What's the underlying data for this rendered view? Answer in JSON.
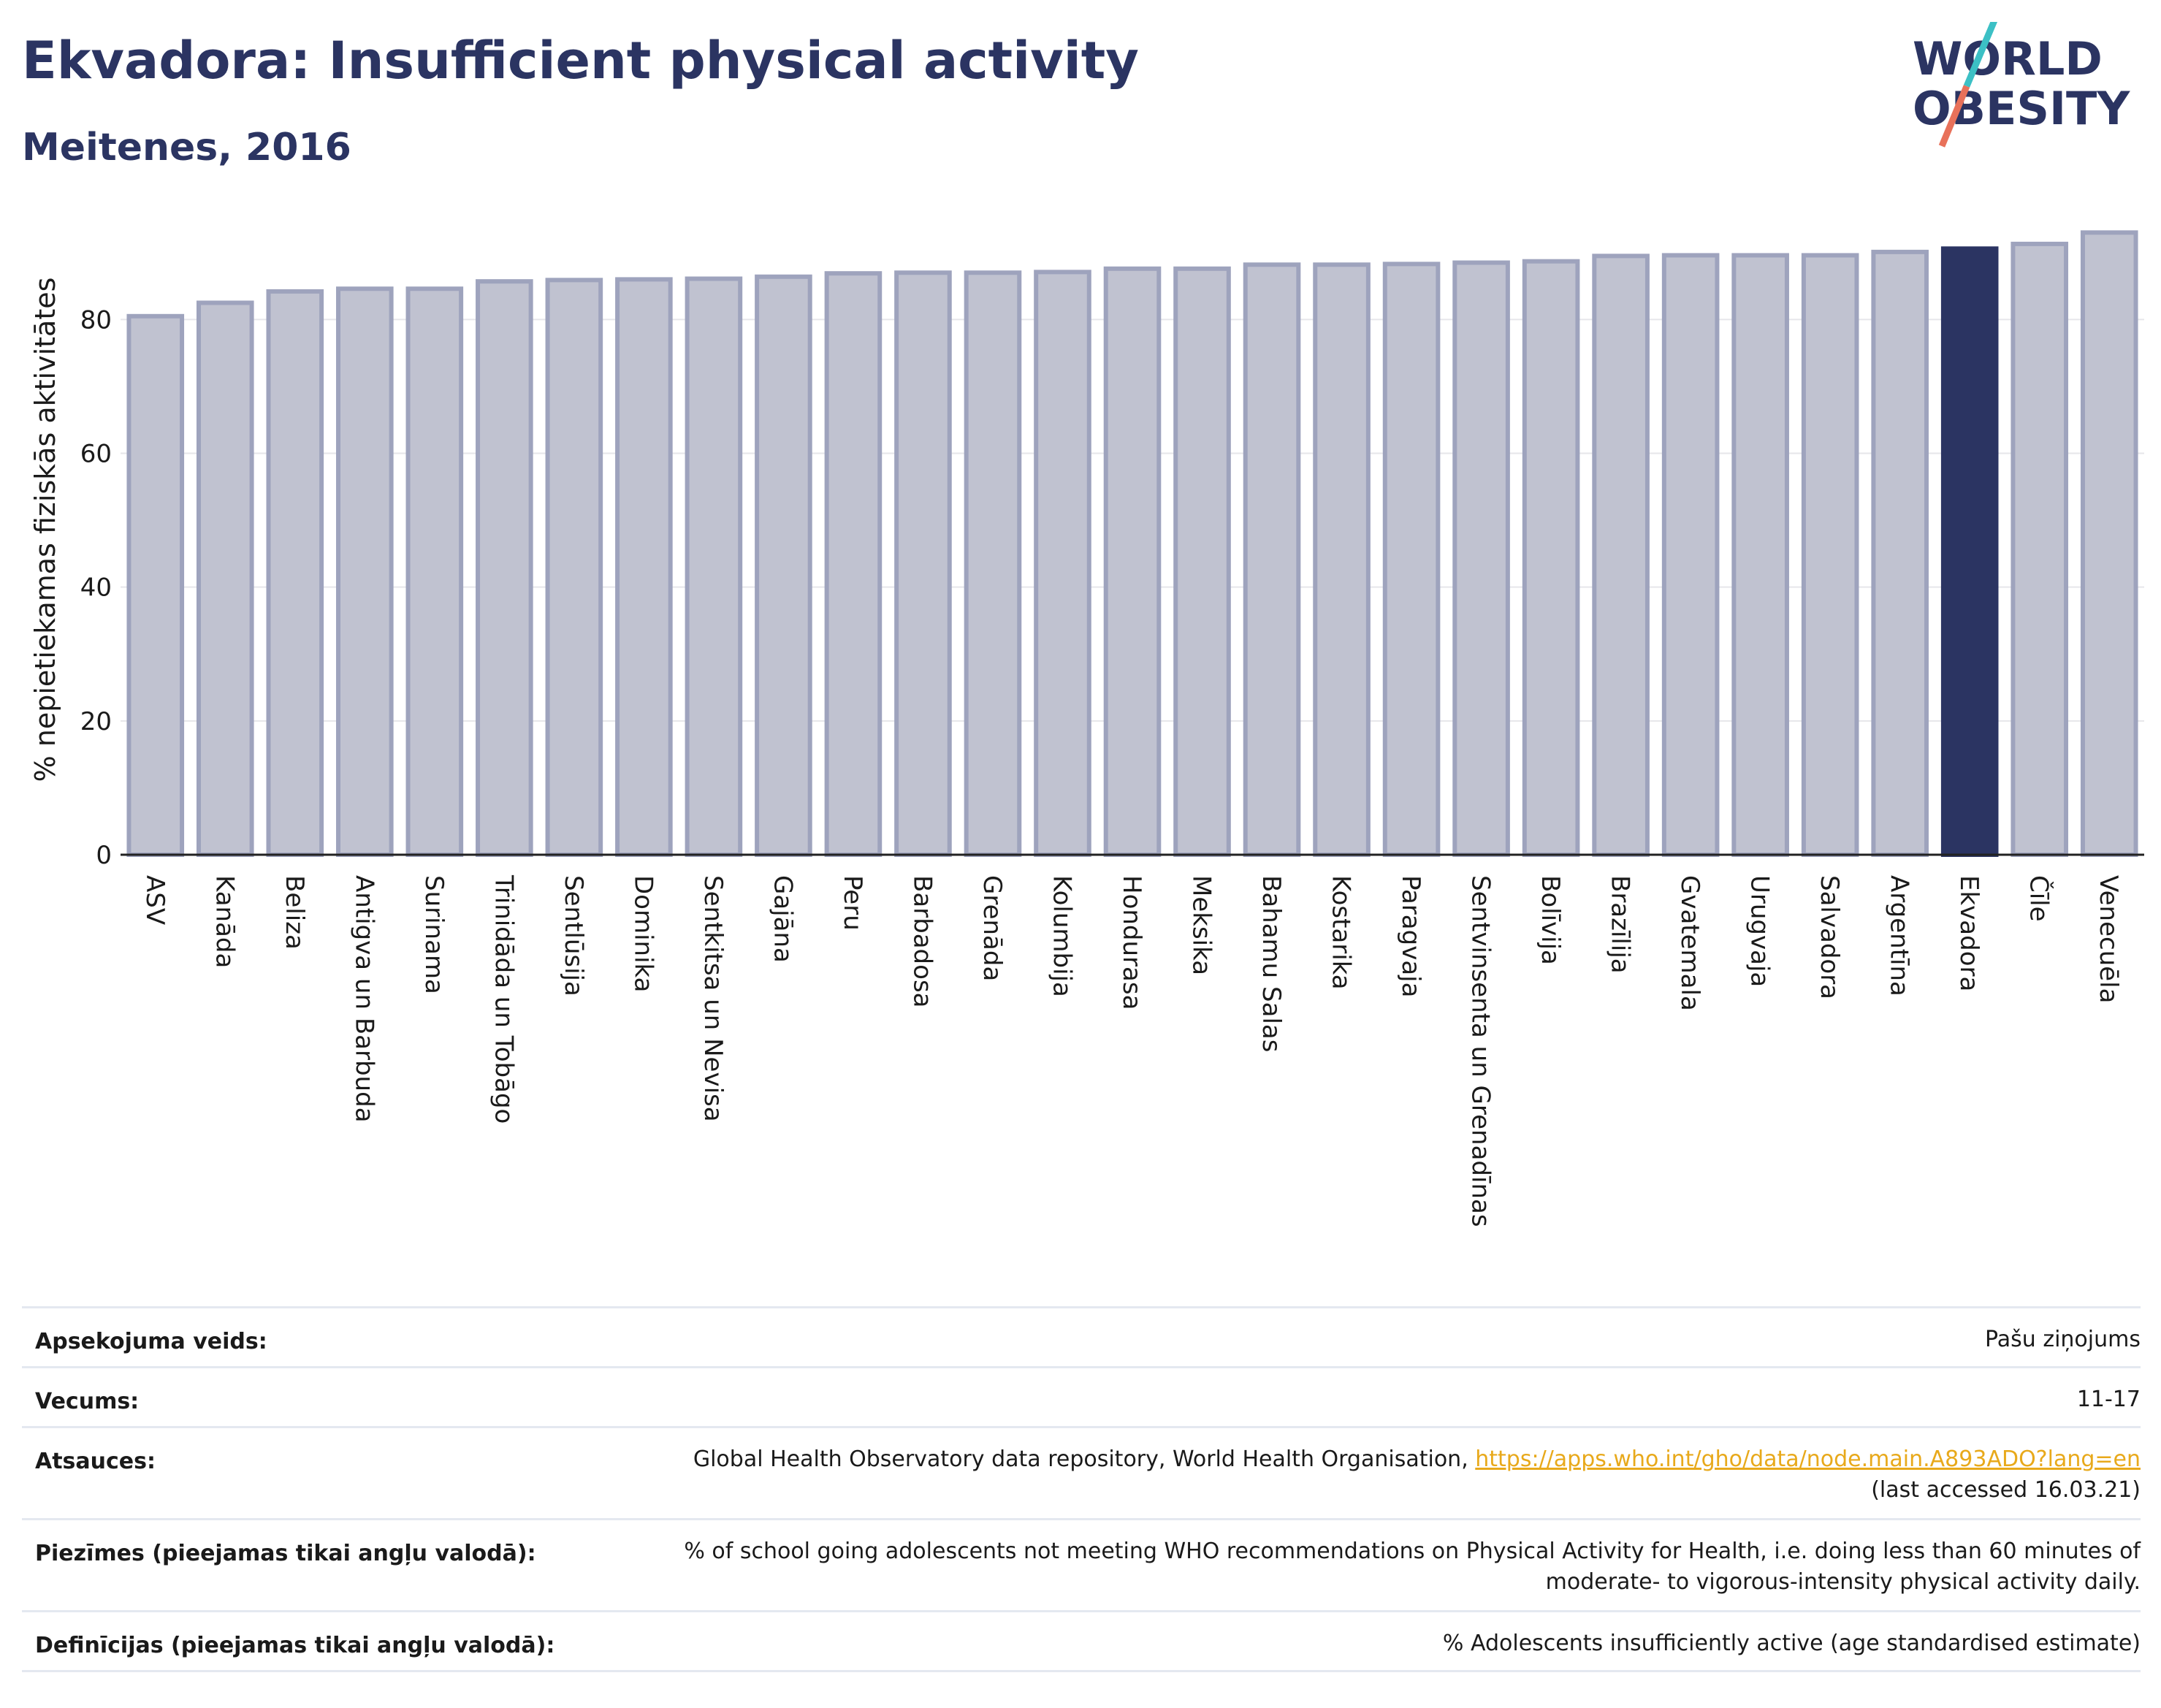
{
  "header": {
    "title": "Ekvadora: Insufficient physical activity",
    "subtitle": "Meitenes, 2016"
  },
  "logo": {
    "line1": "WORLD",
    "line2": "OBESITY",
    "colors": {
      "text": "#2b3462",
      "slash_top": "#3cc0c5",
      "slash_bottom": "#e8715a"
    }
  },
  "chart_data": {
    "type": "bar",
    "categories": [
      "ASV",
      "Kanāda",
      "Beliza",
      "Antigva un Barbuda",
      "Surinama",
      "Trinidāda un Tobāgo",
      "Sentlūsija",
      "Dominika",
      "Sentkitsa un Nevisa",
      "Gajāna",
      "Peru",
      "Barbadosa",
      "Grenāda",
      "Kolumbija",
      "Hondurasa",
      "Meksika",
      "Bahamu Salas",
      "Kostarika",
      "Paragvaja",
      "Sentvinsenta un Grenadīnas",
      "Bolīvija",
      "Brazīlija",
      "Gvatemala",
      "Urugvaja",
      "Salvadora",
      "Argentīna",
      "Ekvadora",
      "Čīle",
      "Venecuēla"
    ],
    "values": [
      80.5,
      82.5,
      84.2,
      84.6,
      84.6,
      85.7,
      85.9,
      86.0,
      86.1,
      86.4,
      86.9,
      87.0,
      87.0,
      87.1,
      87.6,
      87.6,
      88.2,
      88.2,
      88.3,
      88.5,
      88.7,
      89.5,
      89.6,
      89.6,
      89.6,
      90.1,
      90.6,
      91.3,
      93.0
    ],
    "highlight": "Ekvadora",
    "ylabel": "% nepietiekamas fiziskās aktivitātes",
    "xlabel": "",
    "ylim": [
      0,
      95
    ],
    "yticks": [
      0,
      20,
      40,
      60,
      80
    ],
    "grid": true,
    "colors": {
      "bar": "#c0c2d0",
      "bar_edge": "#9ea3bd",
      "highlight": "#2b3462"
    }
  },
  "info": [
    {
      "label": "Apsekojuma veids:",
      "value": "Pašu ziņojums"
    },
    {
      "label": "Vecums:",
      "value": "11-17"
    },
    {
      "label": "Atsauces:",
      "value": "Global Health Observatory data repository, World Health Organisation, ",
      "link": "https://apps.who.int/gho/data/node.main.A893ADO?lang=en",
      "value2": "(last accessed 16.03.21)"
    },
    {
      "label": "Piezīmes (pieejamas tikai angļu valodā):",
      "value": "% of school going adolescents not meeting WHO recommendations on Physical Activity for Health, i.e. doing less than 60 minutes of",
      "value2": "moderate- to vigorous-intensity physical activity daily."
    },
    {
      "label": "Definīcijas (pieejamas tikai angļu valodā):",
      "value": "% Adolescents insufficiently active (age standardised estimate)"
    }
  ]
}
